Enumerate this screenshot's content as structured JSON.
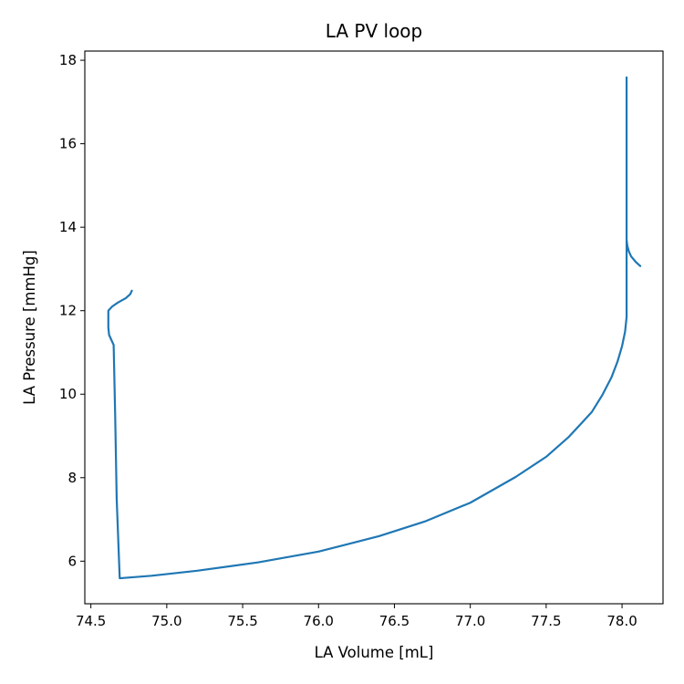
{
  "chart_data": {
    "type": "line",
    "title": "LA PV loop",
    "xlabel": "LA Volume [mL]",
    "ylabel": "LA Pressure [mmHg]",
    "xlim": [
      74.46,
      78.27
    ],
    "ylim": [
      4.98,
      18.22
    ],
    "grid": false,
    "x_ticks": [
      74.5,
      75.0,
      75.5,
      76.0,
      76.5,
      77.0,
      77.5,
      78.0
    ],
    "x_tick_labels": [
      "74.5",
      "75.0",
      "75.5",
      "76.0",
      "76.5",
      "77.0",
      "77.5",
      "78.0"
    ],
    "y_ticks": [
      6,
      8,
      10,
      12,
      14,
      16,
      18
    ],
    "y_tick_labels": [
      "6",
      "8",
      "10",
      "12",
      "14",
      "16",
      "18"
    ],
    "series": [
      {
        "color": "#1f77b4",
        "x": [
          78.12,
          78.09,
          78.06,
          78.045,
          78.035,
          78.03,
          78.03,
          78.03,
          78.03,
          78.03,
          78.03,
          78.02,
          78.0,
          77.97,
          77.93,
          77.87,
          77.8,
          77.65,
          77.5,
          77.3,
          77.0,
          76.7,
          76.4,
          76.0,
          75.6,
          75.2,
          74.9,
          74.69,
          74.67,
          74.66,
          74.65,
          74.645,
          74.62,
          74.615,
          74.615,
          74.64,
          74.68,
          74.73,
          74.76,
          74.77
        ],
        "y": [
          13.07,
          13.17,
          13.3,
          13.42,
          13.55,
          13.7,
          15.5,
          17.59,
          13.7,
          12.5,
          11.85,
          11.5,
          11.15,
          10.78,
          10.4,
          9.98,
          9.57,
          8.98,
          8.5,
          8.02,
          7.4,
          6.95,
          6.6,
          6.23,
          5.97,
          5.77,
          5.65,
          5.59,
          7.5,
          9.5,
          11.18,
          11.22,
          11.42,
          11.6,
          12.0,
          12.1,
          12.2,
          12.3,
          12.4,
          12.48
        ]
      }
    ]
  }
}
